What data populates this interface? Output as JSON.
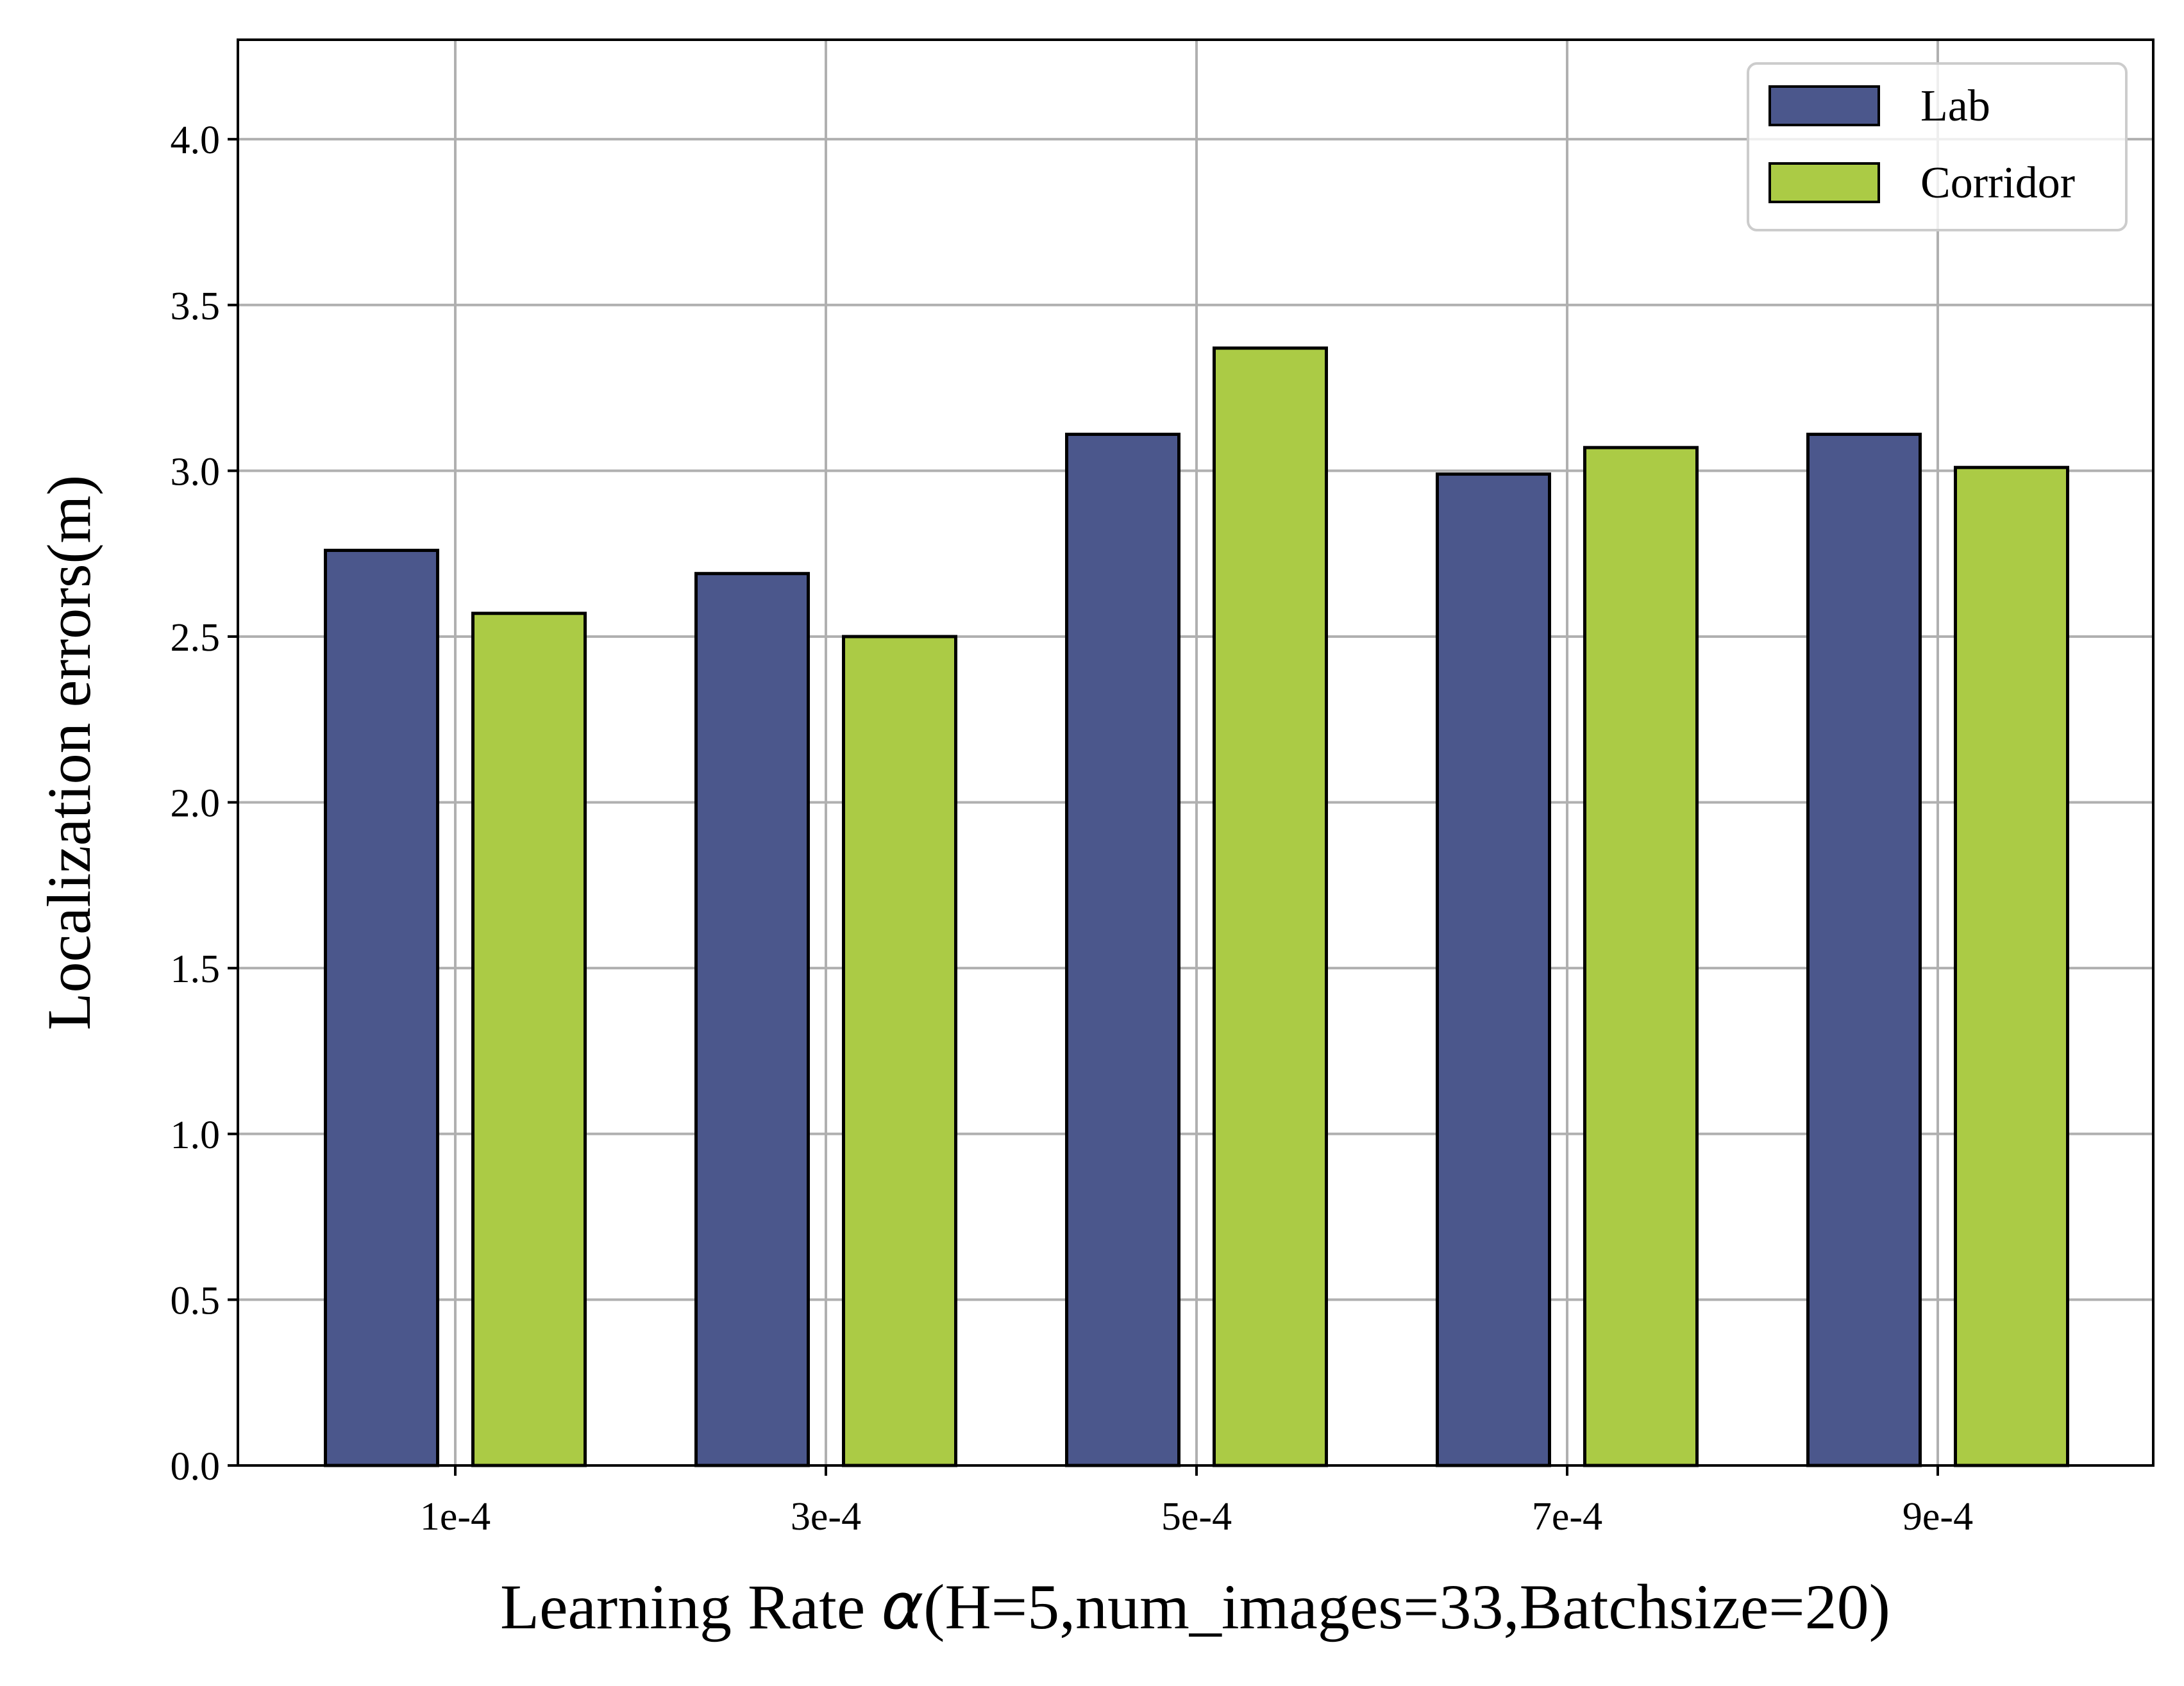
{
  "chart_data": {
    "type": "bar",
    "title": "",
    "xlabel_prefix": "Learning Rate ",
    "xlabel_symbol": "α",
    "xlabel_suffix": "(H=5,num_images=33,Batchsize=20)",
    "ylabel": "Localization errors(m)",
    "categories": [
      "1e-4",
      "3e-4",
      "5e-4",
      "7e-4",
      "9e-4"
    ],
    "series": [
      {
        "name": "Lab",
        "color": "#4b578c",
        "values": [
          2.76,
          2.69,
          3.11,
          2.99,
          3.11
        ]
      },
      {
        "name": "Corridor",
        "color": "#abcb45",
        "values": [
          2.57,
          2.5,
          3.37,
          3.07,
          3.01
        ]
      }
    ],
    "ylim": [
      0,
      4.3
    ],
    "yticks": [
      "0.0",
      "0.5",
      "1.0",
      "1.5",
      "2.0",
      "2.5",
      "3.0",
      "3.5",
      "4.0"
    ],
    "grid": true,
    "legend_position": "top-right",
    "grid_color": "#b0b0b0",
    "edge_color": "#000000"
  }
}
